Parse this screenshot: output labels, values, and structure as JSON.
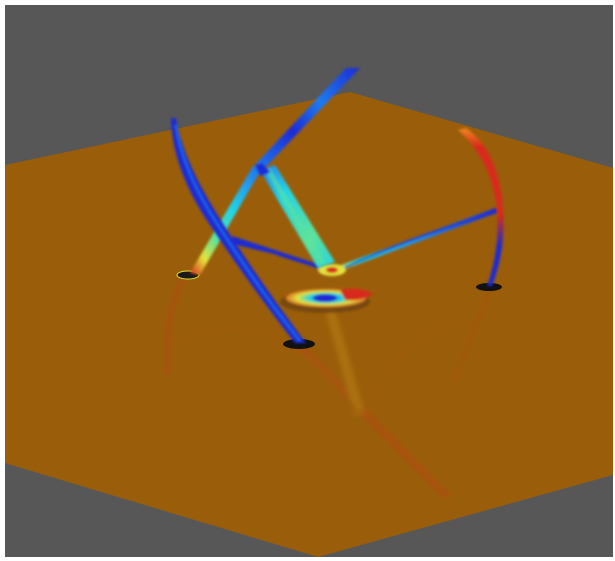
{
  "scene": {
    "kind": "3d-render",
    "background_color": "#575757",
    "floor_color": "#9a5e0a",
    "frame_color": "#ffffff"
  },
  "colormap": [
    "#1a2bd6",
    "#1f7bf0",
    "#22d3e6",
    "#5de39b",
    "#e3e23a",
    "#f08a1c",
    "#d8291c"
  ]
}
